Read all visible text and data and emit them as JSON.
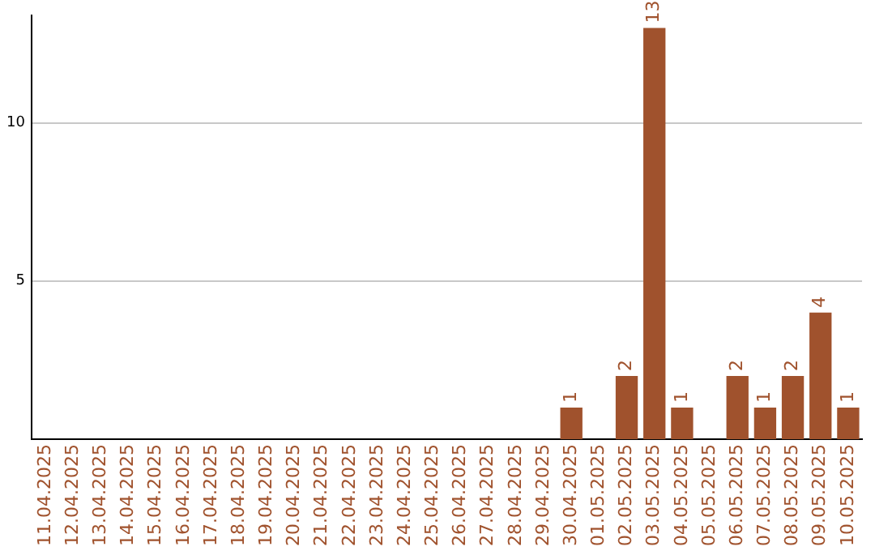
{
  "chart_data": {
    "type": "bar",
    "categories": [
      "11.04.2025",
      "12.04.2025",
      "13.04.2025",
      "14.04.2025",
      "15.04.2025",
      "16.04.2025",
      "17.04.2025",
      "18.04.2025",
      "19.04.2025",
      "20.04.2025",
      "21.04.2025",
      "22.04.2025",
      "23.04.2025",
      "24.04.2025",
      "25.04.2025",
      "26.04.2025",
      "27.04.2025",
      "28.04.2025",
      "29.04.2025",
      "30.04.2025",
      "01.05.2025",
      "02.05.2025",
      "03.05.2025",
      "04.05.2025",
      "05.05.2025",
      "06.05.2025",
      "07.05.2025",
      "08.05.2025",
      "09.05.2025",
      "10.05.2025"
    ],
    "values": [
      0,
      0,
      0,
      0,
      0,
      0,
      0,
      0,
      0,
      0,
      0,
      0,
      0,
      0,
      0,
      0,
      0,
      0,
      0,
      1,
      0,
      2,
      13,
      1,
      0,
      2,
      1,
      2,
      4,
      1
    ],
    "value_labels": [
      null,
      null,
      null,
      null,
      null,
      null,
      null,
      null,
      null,
      null,
      null,
      null,
      null,
      null,
      null,
      null,
      null,
      null,
      null,
      "1",
      null,
      "2",
      "13",
      "1",
      null,
      "2",
      "1",
      "2",
      "4",
      "1"
    ],
    "color": "#a0522d",
    "ylim": [
      0,
      13.4
    ],
    "yticks": [
      5,
      10
    ],
    "grid": "y",
    "legend": false
  }
}
